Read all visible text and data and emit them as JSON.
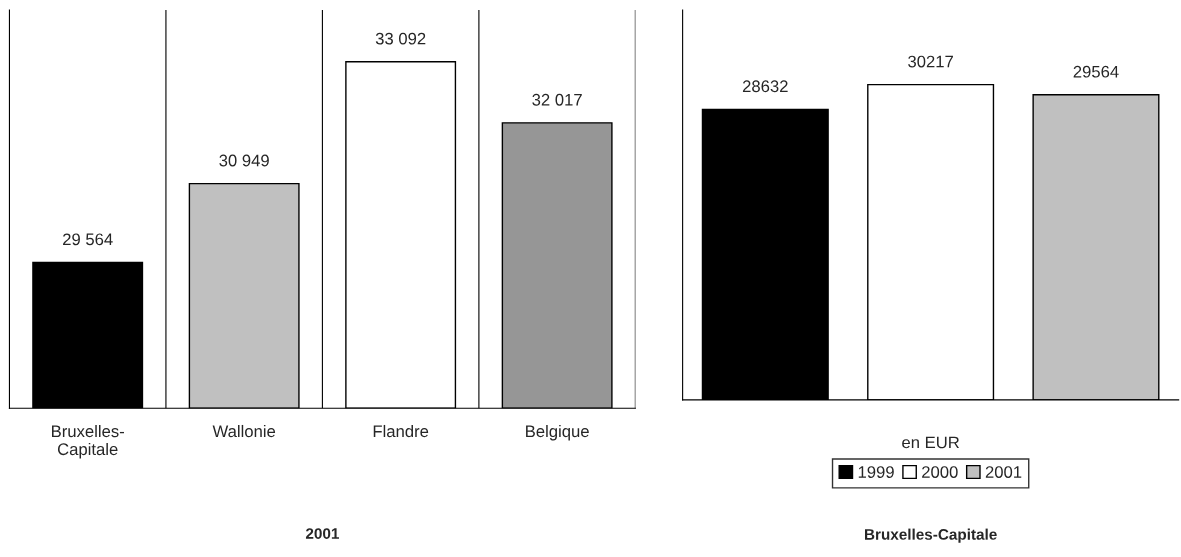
{
  "chart_data": [
    {
      "type": "bar",
      "title": "2001",
      "categories": [
        "Bruxelles-\nCapitale",
        "Wallonie",
        "Flandre",
        "Belgique"
      ],
      "values": [
        29564,
        30949,
        33092,
        32017
      ],
      "colors": [
        "#000000",
        "#c0c0c0",
        "#ffffff",
        "#969696"
      ],
      "value_labels": [
        "29 564",
        "30 949",
        "33 092",
        "32 017"
      ],
      "ylim": [
        27000,
        34000
      ],
      "grid": "x",
      "tick_labels": "x"
    },
    {
      "type": "bar",
      "title": "Bruxelles-Capitale",
      "xlabel": "en EUR",
      "categories": [
        null,
        null,
        null
      ],
      "series": [
        {
          "name": "1999",
          "color": "#000000",
          "values": [
            28632,
            null,
            null
          ]
        },
        {
          "name": "2000",
          "color": "#ffffff",
          "values": [
            null,
            30217,
            null
          ]
        },
        {
          "name": "2001",
          "color": "#c0c0c0",
          "values": [
            null,
            null,
            29564
          ]
        }
      ],
      "data_labels": true,
      "stacked": true,
      "ylim": [
        10000,
        35000
      ],
      "legend": "bottom",
      "tick_labels": "x"
    }
  ]
}
